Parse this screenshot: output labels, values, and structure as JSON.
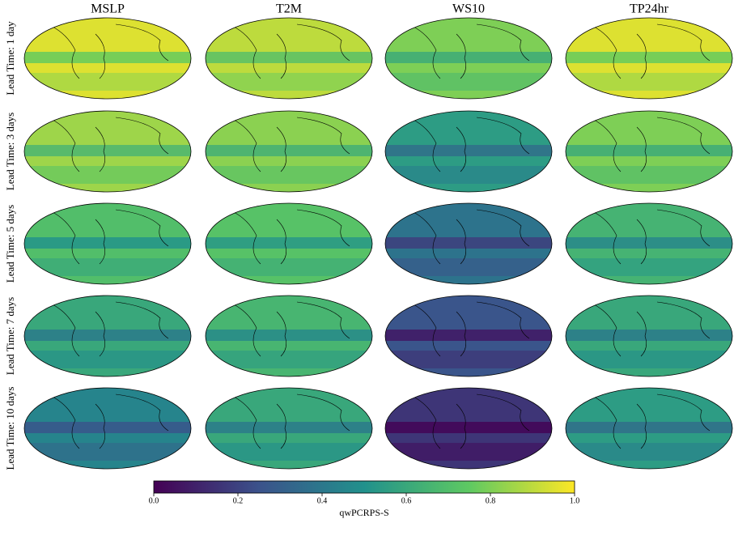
{
  "columns": [
    "MSLP",
    "T2M",
    "WS10",
    "TP24hr"
  ],
  "rows": [
    "Lead Time: 1 day",
    "Lead Time: 3 days",
    "Lead Time: 5 days",
    "Lead Time: 7 days",
    "Lead Time: 10 days"
  ],
  "colorbar": {
    "label": "qwPCRPS-S",
    "lim": [
      0,
      1
    ],
    "ticks": [
      {
        "value": 0,
        "label": "0.0"
      },
      0.2,
      0.4,
      0.6,
      0.8,
      {
        "value": 1,
        "label": "1.0"
      }
    ]
  }
}
